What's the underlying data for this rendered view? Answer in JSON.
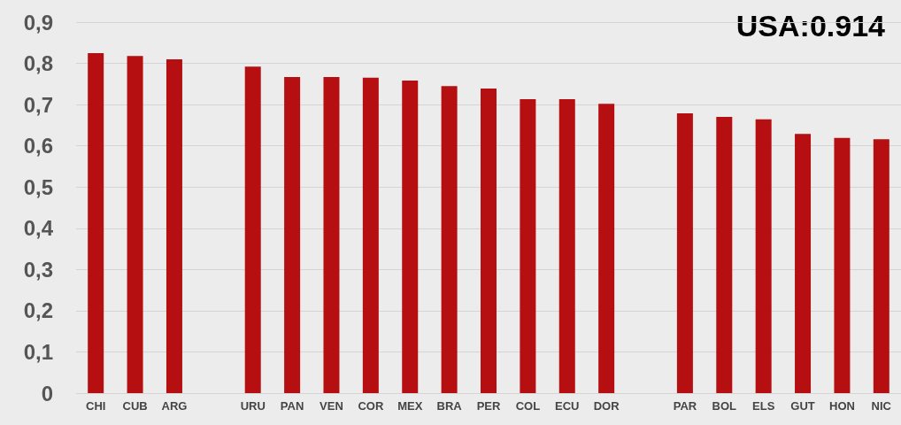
{
  "chart_data": {
    "type": "bar",
    "categories": [
      "CHI",
      "CUB",
      "ARG",
      null,
      "URU",
      "PAN",
      "VEN",
      "COR",
      "MEX",
      "BRA",
      "PER",
      "COL",
      "ECU",
      "DOR",
      null,
      "PAR",
      "BOL",
      "ELS",
      "GUT",
      "HON",
      "NIC"
    ],
    "values": [
      0.825,
      0.818,
      0.81,
      null,
      0.792,
      0.767,
      0.767,
      0.765,
      0.758,
      0.745,
      0.739,
      0.713,
      0.713,
      0.702,
      null,
      0.679,
      0.67,
      0.664,
      0.629,
      0.619,
      0.616
    ],
    "color": "#b50f11",
    "ylim": [
      0,
      0.9
    ],
    "yticks": [
      0,
      {
        "value": 0.1,
        "label": "0,1"
      },
      {
        "value": 0.2,
        "label": "0,2"
      },
      {
        "value": 0.3,
        "label": "0,3"
      },
      {
        "value": 0.4,
        "label": "0,4"
      },
      {
        "value": 0.5,
        "label": "0,5"
      },
      {
        "value": 0.6,
        "label": "0,6"
      },
      {
        "value": 0.7,
        "label": "0,7"
      },
      {
        "value": 0.8,
        "label": "0,8"
      },
      {
        "value": 0.9,
        "label": "0,9"
      }
    ],
    "grid": "y",
    "annotations": [
      "USA:0.914"
    ]
  }
}
